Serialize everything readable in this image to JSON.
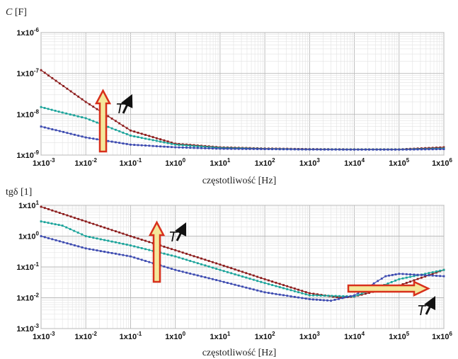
{
  "colors": {
    "series_dark_red": "#8b1a1a",
    "series_teal": "#1aa39a",
    "series_blue": "#3c4ab0",
    "arrow_fill": "#f4e79a",
    "arrow_stroke": "#d8301c",
    "grid_major": "#b9b9b9",
    "grid_minor": "#e2e2e2"
  },
  "chart_data": [
    {
      "type": "line",
      "ylabel_symbol": "C",
      "ylabel_unit": " [F]",
      "xlabel": "częstotliwość [Hz]",
      "xscale": "log",
      "yscale": "log",
      "xlim": [
        0.001,
        1000000
      ],
      "ylim": [
        1e-09,
        1e-06
      ],
      "xticks": [
        0.001,
        0.01,
        0.1,
        1,
        10,
        100,
        1000,
        10000,
        100000,
        1000000
      ],
      "xtick_labels": [
        {
          "base": "1x10",
          "exp": "-3"
        },
        {
          "base": "1x10",
          "exp": "-2"
        },
        {
          "base": "1x10",
          "exp": "-1"
        },
        {
          "base": "1x10",
          "exp": "0"
        },
        {
          "base": "1x10",
          "exp": "1"
        },
        {
          "base": "1x10",
          "exp": "2"
        },
        {
          "base": "1x10",
          "exp": "3"
        },
        {
          "base": "1x10",
          "exp": "4"
        },
        {
          "base": "1x10",
          "exp": "5"
        },
        {
          "base": "1x10",
          "exp": "6"
        }
      ],
      "yticks": [
        1e-09,
        1e-08,
        1e-07,
        1e-06
      ],
      "ytick_labels": [
        {
          "base": "1x10",
          "exp": "-9"
        },
        {
          "base": "1x10",
          "exp": "-8"
        },
        {
          "base": "1x10",
          "exp": "-7"
        },
        {
          "base": "1x10",
          "exp": "-6"
        }
      ],
      "grid": true,
      "series": [
        {
          "color": "#8b1a1a",
          "x": [
            0.001,
            0.01,
            0.1,
            1,
            10,
            100,
            1000,
            10000,
            100000,
            1000000
          ],
          "y": [
            1.2e-07,
            2e-08,
            4e-09,
            1.9e-09,
            1.55e-09,
            1.45e-09,
            1.4e-09,
            1.38e-09,
            1.38e-09,
            1.55e-09
          ]
        },
        {
          "color": "#1aa39a",
          "x": [
            0.001,
            0.003,
            0.01,
            0.1,
            1,
            10,
            100,
            1000,
            10000,
            100000,
            1000000
          ],
          "y": [
            1.5e-08,
            1.1e-08,
            8e-09,
            3e-09,
            1.8e-09,
            1.5e-09,
            1.42e-09,
            1.38e-09,
            1.37e-09,
            1.37e-09,
            1.45e-09
          ]
        },
        {
          "color": "#3c4ab0",
          "x": [
            0.001,
            0.01,
            0.1,
            1,
            10,
            100,
            1000,
            10000,
            100000,
            1000000
          ],
          "y": [
            5e-09,
            2.7e-09,
            1.8e-09,
            1.55e-09,
            1.43e-09,
            1.4e-09,
            1.37e-09,
            1.36e-09,
            1.36e-09,
            1.4e-09
          ]
        }
      ],
      "annotations": [
        {
          "label": "T",
          "direction": "up",
          "at_x": 0.02
        }
      ]
    },
    {
      "type": "line",
      "ylabel_symbol": "tgδ",
      "ylabel_unit": " [1]",
      "xlabel": "częstotliwość [Hz]",
      "xscale": "log",
      "yscale": "log",
      "xlim": [
        0.001,
        1000000
      ],
      "ylim": [
        0.001,
        10
      ],
      "xticks": [
        0.001,
        0.01,
        0.1,
        1,
        10,
        100,
        1000,
        10000,
        100000,
        1000000
      ],
      "xtick_labels": [
        {
          "base": "1x10",
          "exp": "-3"
        },
        {
          "base": "1x10",
          "exp": "-2"
        },
        {
          "base": "1x10",
          "exp": "-1"
        },
        {
          "base": "1x10",
          "exp": "0"
        },
        {
          "base": "1x10",
          "exp": "1"
        },
        {
          "base": "1x10",
          "exp": "2"
        },
        {
          "base": "1x10",
          "exp": "3"
        },
        {
          "base": "1x10",
          "exp": "4"
        },
        {
          "base": "1x10",
          "exp": "5"
        },
        {
          "base": "1x10",
          "exp": "6"
        }
      ],
      "yticks": [
        0.001,
        0.01,
        0.1,
        1,
        10
      ],
      "ytick_labels": [
        {
          "base": "1x10",
          "exp": "-3"
        },
        {
          "base": "1x10",
          "exp": "-2"
        },
        {
          "base": "1x10",
          "exp": "-1"
        },
        {
          "base": "1x10",
          "exp": "0"
        },
        {
          "base": "1x10",
          "exp": "1"
        }
      ],
      "grid": true,
      "series": [
        {
          "color": "#8b1a1a",
          "x": [
            0.001,
            0.01,
            0.1,
            1,
            10,
            100,
            1000,
            5000,
            10000,
            100000,
            1000000
          ],
          "y": [
            9.0,
            3.0,
            1.0,
            0.35,
            0.12,
            0.04,
            0.014,
            0.01,
            0.011,
            0.025,
            0.08
          ]
        },
        {
          "color": "#1aa39a",
          "x": [
            0.001,
            0.003,
            0.01,
            0.1,
            1,
            10,
            100,
            1000,
            10000,
            100000,
            1000000
          ],
          "y": [
            3.0,
            2.2,
            1.0,
            0.5,
            0.22,
            0.08,
            0.03,
            0.012,
            0.011,
            0.04,
            0.08
          ]
        },
        {
          "color": "#3c4ab0",
          "x": [
            0.001,
            0.01,
            0.1,
            1,
            10,
            100,
            1000,
            3000,
            10000,
            50000,
            100000,
            1000000
          ],
          "y": [
            1.0,
            0.4,
            0.22,
            0.08,
            0.035,
            0.015,
            0.009,
            0.008,
            0.012,
            0.05,
            0.06,
            0.05
          ]
        }
      ],
      "annotations": [
        {
          "label": "T",
          "direction": "up",
          "at_x": 0.3
        },
        {
          "label": "T",
          "direction": "right",
          "at_y": 0.02
        }
      ]
    }
  ]
}
